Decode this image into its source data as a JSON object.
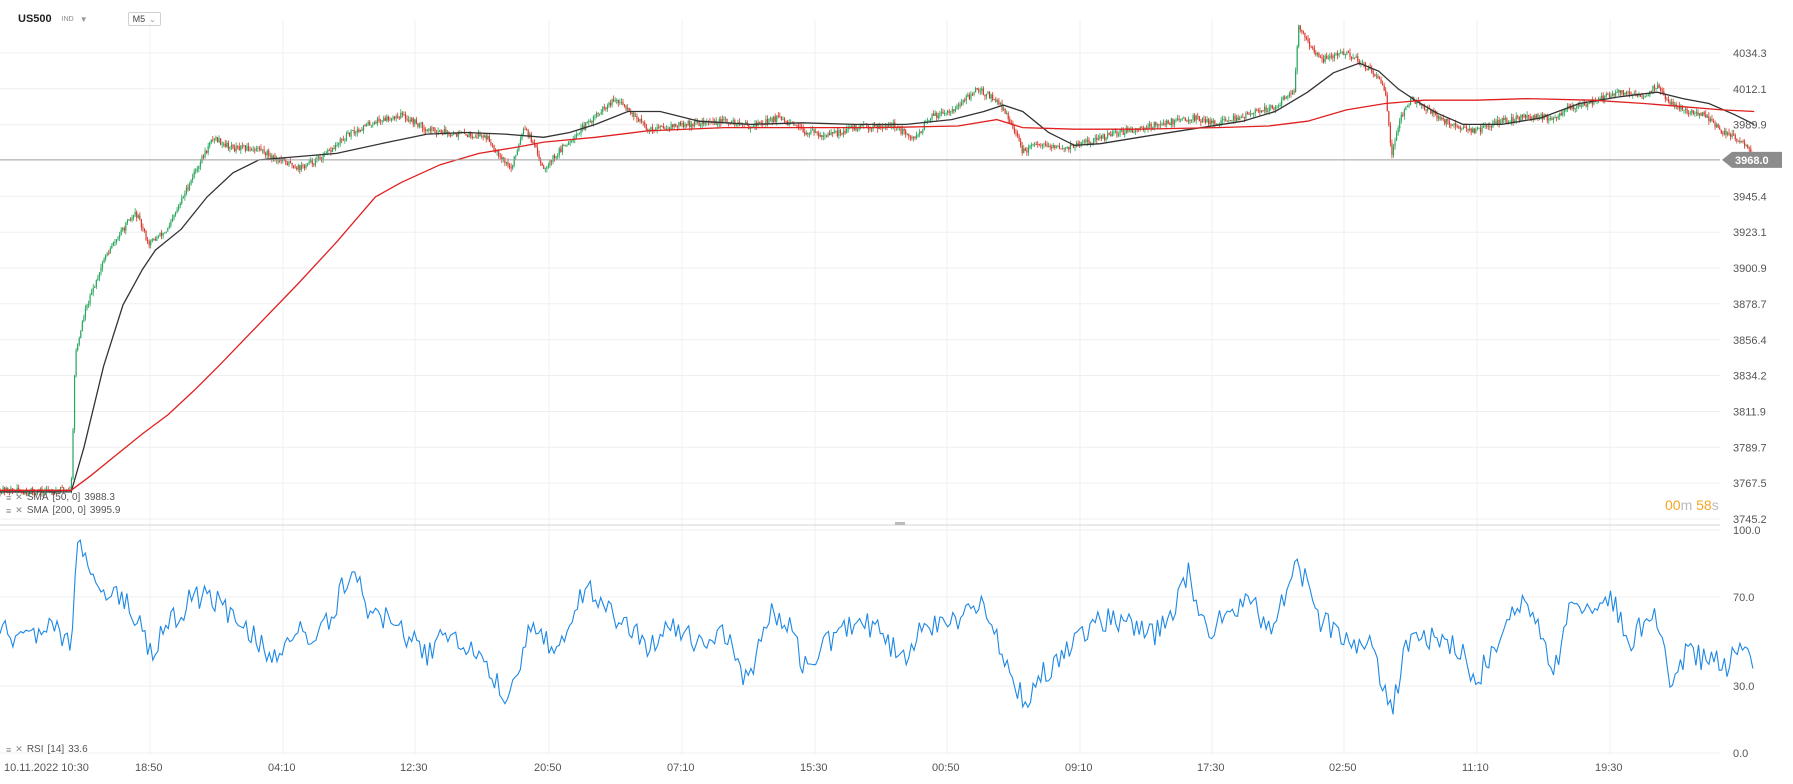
{
  "header": {
    "symbol": "US500",
    "asset_class": "IND",
    "timeframe": "M5"
  },
  "indicators": {
    "sma50": {
      "name": "SMA",
      "params": "[50, 0]",
      "value": "3988.3",
      "color": "#333333"
    },
    "sma200": {
      "name": "SMA",
      "params": "[200, 0]",
      "value": "3995.9",
      "color": "#e02020"
    },
    "rsi": {
      "name": "RSI",
      "params": "[14]",
      "value": "33.6",
      "color": "#1e88e5"
    }
  },
  "countdown": {
    "minutes": "00",
    "minutes_unit": "m",
    "seconds": "58",
    "seconds_unit": "s"
  },
  "chart_data": [
    {
      "type": "candlestick",
      "title": "US500",
      "ylim": [
        3745.2,
        4045
      ],
      "y_ticks": [
        "4034.3",
        "4012.1",
        "3989.9",
        "3968.0",
        "3945.4",
        "3923.1",
        "3900.9",
        "3878.7",
        "3856.4",
        "3834.2",
        "3811.9",
        "3789.7",
        "3767.5",
        "3745.2"
      ],
      "last_price": "3968.0",
      "last_price_value": 3968.0,
      "x_tick_labels": [
        "10.11.2022 10:30",
        "18:50",
        "04:10",
        "12:30",
        "20:50",
        "07:10",
        "15:30",
        "00:50",
        "09:10",
        "17:30",
        "02:50",
        "11:10",
        "19:30"
      ],
      "candle_colors": {
        "up": "#26a65b",
        "down": "#d9352b"
      },
      "price_path": [
        [
          0,
          3763
        ],
        [
          30,
          3762
        ],
        [
          55,
          3764
        ],
        [
          58,
          3846
        ],
        [
          65,
          3872
        ],
        [
          80,
          3906
        ],
        [
          95,
          3925
        ],
        [
          105,
          3935
        ],
        [
          115,
          3916
        ],
        [
          130,
          3925
        ],
        [
          150,
          3960
        ],
        [
          165,
          3982
        ],
        [
          180,
          3975
        ],
        [
          200,
          3975
        ],
        [
          215,
          3968
        ],
        [
          232,
          3963
        ],
        [
          250,
          3970
        ],
        [
          270,
          3984
        ],
        [
          290,
          3992
        ],
        [
          310,
          3996
        ],
        [
          330,
          3987
        ],
        [
          355,
          3984
        ],
        [
          375,
          3983
        ],
        [
          395,
          3962
        ],
        [
          405,
          3990
        ],
        [
          420,
          3963
        ],
        [
          440,
          3980
        ],
        [
          460,
          3995
        ],
        [
          475,
          4005
        ],
        [
          485,
          4000
        ],
        [
          500,
          3987
        ],
        [
          530,
          3990
        ],
        [
          560,
          3992
        ],
        [
          580,
          3989
        ],
        [
          600,
          3994
        ],
        [
          620,
          3986
        ],
        [
          640,
          3983
        ],
        [
          660,
          3988
        ],
        [
          690,
          3990
        ],
        [
          705,
          3980
        ],
        [
          720,
          3995
        ],
        [
          740,
          4001
        ],
        [
          755,
          4012
        ],
        [
          770,
          4005
        ],
        [
          780,
          3993
        ],
        [
          790,
          3973
        ],
        [
          800,
          3977
        ],
        [
          820,
          3975
        ],
        [
          840,
          3979
        ],
        [
          870,
          3986
        ],
        [
          900,
          3991
        ],
        [
          920,
          3994
        ],
        [
          940,
          3991
        ],
        [
          960,
          3995
        ],
        [
          985,
          4001
        ],
        [
          1000,
          4012
        ],
        [
          1003,
          4050
        ],
        [
          1020,
          4030
        ],
        [
          1040,
          4035
        ],
        [
          1055,
          4026
        ],
        [
          1070,
          4012
        ],
        [
          1075,
          3972
        ],
        [
          1082,
          3995
        ],
        [
          1090,
          4006
        ],
        [
          1100,
          4001
        ],
        [
          1110,
          3995
        ],
        [
          1125,
          3988
        ],
        [
          1140,
          3986
        ],
        [
          1160,
          3992
        ],
        [
          1180,
          3995
        ],
        [
          1200,
          3994
        ],
        [
          1210,
          4000
        ],
        [
          1230,
          4004
        ],
        [
          1250,
          4010
        ],
        [
          1270,
          4008
        ],
        [
          1280,
          4014
        ],
        [
          1290,
          4003
        ],
        [
          1305,
          3998
        ],
        [
          1315,
          3996
        ],
        [
          1330,
          3986
        ],
        [
          1345,
          3980
        ],
        [
          1352,
          3975
        ],
        [
          1355,
          3968
        ]
      ],
      "series": [
        {
          "name": "SMA [50, 0]",
          "color": "#333333",
          "values": [
            [
              0,
              3762
            ],
            [
              55,
              3762
            ],
            [
              65,
              3790
            ],
            [
              80,
              3840
            ],
            [
              95,
              3878
            ],
            [
              110,
              3900
            ],
            [
              120,
              3912
            ],
            [
              140,
              3925
            ],
            [
              160,
              3945
            ],
            [
              180,
              3960
            ],
            [
              200,
              3968
            ],
            [
              230,
              3970
            ],
            [
              260,
              3972
            ],
            [
              300,
              3979
            ],
            [
              330,
              3984
            ],
            [
              360,
              3985
            ],
            [
              390,
              3984
            ],
            [
              420,
              3982
            ],
            [
              440,
              3985
            ],
            [
              460,
              3990
            ],
            [
              485,
              3998
            ],
            [
              510,
              3998
            ],
            [
              540,
              3992
            ],
            [
              580,
              3990
            ],
            [
              620,
              3991
            ],
            [
              660,
              3990
            ],
            [
              700,
              3990
            ],
            [
              735,
              3993
            ],
            [
              760,
              3998
            ],
            [
              775,
              4002
            ],
            [
              790,
              3998
            ],
            [
              810,
              3985
            ],
            [
              830,
              3977
            ],
            [
              850,
              3978
            ],
            [
              880,
              3982
            ],
            [
              920,
              3987
            ],
            [
              960,
              3992
            ],
            [
              985,
              3998
            ],
            [
              1010,
              4010
            ],
            [
              1030,
              4022
            ],
            [
              1050,
              4028
            ],
            [
              1065,
              4023
            ],
            [
              1080,
              4012
            ],
            [
              1095,
              4004
            ],
            [
              1110,
              3997
            ],
            [
              1130,
              3990
            ],
            [
              1160,
              3990
            ],
            [
              1190,
              3994
            ],
            [
              1220,
              4003
            ],
            [
              1250,
              4007
            ],
            [
              1280,
              4010
            ],
            [
              1300,
              4006
            ],
            [
              1320,
              4003
            ],
            [
              1340,
              3996
            ],
            [
              1355,
              3990
            ]
          ]
        },
        {
          "name": "SMA [200, 0]",
          "color": "#e02020",
          "values": [
            [
              0,
              3763
            ],
            [
              55,
              3763
            ],
            [
              70,
              3772
            ],
            [
              90,
              3785
            ],
            [
              110,
              3798
            ],
            [
              130,
              3810
            ],
            [
              150,
              3825
            ],
            [
              170,
              3841
            ],
            [
              200,
              3866
            ],
            [
              230,
              3891
            ],
            [
              260,
              3917
            ],
            [
              290,
              3945
            ],
            [
              310,
              3954
            ],
            [
              340,
              3965
            ],
            [
              370,
              3972
            ],
            [
              400,
              3976
            ],
            [
              420,
              3979
            ],
            [
              460,
              3982
            ],
            [
              500,
              3986
            ],
            [
              560,
              3988
            ],
            [
              620,
              3988
            ],
            [
              680,
              3988
            ],
            [
              740,
              3989
            ],
            [
              770,
              3993
            ],
            [
              790,
              3988
            ],
            [
              830,
              3987
            ],
            [
              880,
              3987
            ],
            [
              940,
              3988
            ],
            [
              980,
              3989
            ],
            [
              1010,
              3992
            ],
            [
              1040,
              3999
            ],
            [
              1070,
              4003
            ],
            [
              1100,
              4005
            ],
            [
              1140,
              4005
            ],
            [
              1180,
              4006
            ],
            [
              1230,
              4005
            ],
            [
              1270,
              4003
            ],
            [
              1300,
              4001
            ],
            [
              1330,
              3999
            ],
            [
              1355,
              3998
            ]
          ]
        }
      ],
      "legend": [
        {
          "label": "SMA [50, 0]",
          "value": "3988.3"
        },
        {
          "label": "SMA [200, 0]",
          "value": "3995.9"
        }
      ]
    },
    {
      "type": "line",
      "title": "RSI [14]",
      "ylim": [
        0,
        100
      ],
      "y_ticks": [
        "100.0",
        "70.0",
        "30.0",
        "0.0"
      ],
      "last_value": 33.6,
      "series": [
        {
          "name": "RSI [14]",
          "color": "#1e88e5",
          "values": [
            [
              0,
              55
            ],
            [
              20,
              50
            ],
            [
              40,
              56
            ],
            [
              55,
              50
            ],
            [
              60,
              92
            ],
            [
              70,
              85
            ],
            [
              80,
              72
            ],
            [
              100,
              68
            ],
            [
              115,
              45
            ],
            [
              130,
              58
            ],
            [
              150,
              70
            ],
            [
              165,
              68
            ],
            [
              180,
              62
            ],
            [
              200,
              50
            ],
            [
              210,
              40
            ],
            [
              225,
              55
            ],
            [
              245,
              50
            ],
            [
              262,
              70
            ],
            [
              273,
              87
            ],
            [
              285,
              62
            ],
            [
              300,
              60
            ],
            [
              315,
              52
            ],
            [
              330,
              45
            ],
            [
              350,
              55
            ],
            [
              370,
              40
            ],
            [
              392,
              25
            ],
            [
              410,
              55
            ],
            [
              430,
              48
            ],
            [
              450,
              72
            ],
            [
              465,
              70
            ],
            [
              480,
              58
            ],
            [
              500,
              48
            ],
            [
              520,
              57
            ],
            [
              540,
              50
            ],
            [
              560,
              55
            ],
            [
              578,
              30
            ],
            [
              595,
              65
            ],
            [
              610,
              55
            ],
            [
              625,
              35
            ],
            [
              640,
              50
            ],
            [
              660,
              60
            ],
            [
              680,
              54
            ],
            [
              700,
              40
            ],
            [
              715,
              60
            ],
            [
              730,
              54
            ],
            [
              755,
              68
            ],
            [
              770,
              50
            ],
            [
              785,
              30
            ],
            [
              792,
              22
            ],
            [
              805,
              35
            ],
            [
              820,
              45
            ],
            [
              835,
              55
            ],
            [
              850,
              60
            ],
            [
              870,
              58
            ],
            [
              890,
              52
            ],
            [
              905,
              60
            ],
            [
              918,
              80
            ],
            [
              932,
              55
            ],
            [
              950,
              62
            ],
            [
              965,
              72
            ],
            [
              980,
              55
            ],
            [
              1000,
              82
            ],
            [
              1008,
              78
            ],
            [
              1020,
              60
            ],
            [
              1040,
              53
            ],
            [
              1060,
              46
            ],
            [
              1075,
              20
            ],
            [
              1090,
              55
            ],
            [
              1110,
              50
            ],
            [
              1125,
              48
            ],
            [
              1140,
              33
            ],
            [
              1160,
              50
            ],
            [
              1175,
              70
            ],
            [
              1190,
              55
            ],
            [
              1200,
              35
            ],
            [
              1215,
              70
            ],
            [
              1230,
              65
            ],
            [
              1245,
              70
            ],
            [
              1260,
              50
            ],
            [
              1278,
              65
            ],
            [
              1290,
              35
            ],
            [
              1305,
              45
            ],
            [
              1320,
              40
            ],
            [
              1335,
              40
            ],
            [
              1350,
              47
            ],
            [
              1355,
              33.6
            ]
          ]
        }
      ],
      "x_tick_labels": [
        "10.11.2022 10:30",
        "18:50",
        "04:10",
        "12:30",
        "20:50",
        "07:10",
        "15:30",
        "00:50",
        "09:10",
        "17:30",
        "02:50",
        "11:10",
        "19:30"
      ]
    }
  ]
}
